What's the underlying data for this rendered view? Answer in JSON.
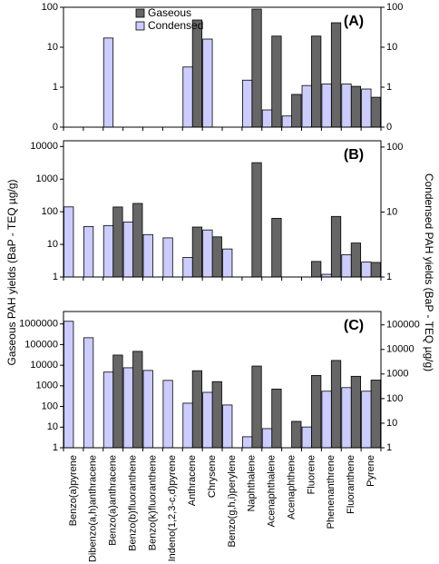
{
  "chart_data": [
    {
      "type": "bar",
      "panel_label": "(A)",
      "log": true,
      "legend": "top-left",
      "ylim": [
        0.1,
        100
      ],
      "yticks": [
        {
          "value": 0.1,
          "label": "0"
        },
        1,
        10,
        100
      ],
      "y2lim": [
        0.1,
        100
      ],
      "y2ticks": [
        {
          "value": 0.1,
          "label": "0"
        },
        1,
        10,
        100
      ],
      "series": [
        {
          "name": "Gaseous",
          "color": "#666666",
          "values": [
            null,
            null,
            null,
            null,
            null,
            null,
            48,
            null,
            null,
            90,
            19,
            0.66,
            19,
            41,
            1.05,
            0.56
          ]
        },
        {
          "name": "Condensed",
          "color": "#ccccff",
          "axis": "y2",
          "values": [
            null,
            null,
            17,
            null,
            null,
            null,
            3.2,
            16,
            null,
            1.5,
            0.27,
            0.19,
            1.1,
            1.2,
            1.2,
            0.9
          ]
        }
      ]
    },
    {
      "type": "bar",
      "panel_label": "(B)",
      "log": true,
      "ylabel": "Gaseous PAH yields (BaP - TEQ µg/g)",
      "y2label": "Condensed PAH yields (BaP - TEQ µg/g)",
      "ylim": [
        1,
        15000
      ],
      "yticks": [
        1,
        10,
        100,
        1000,
        10000
      ],
      "y2lim": [
        1,
        125
      ],
      "y2ticks": [
        1,
        10,
        100
      ],
      "series": [
        {
          "color": "#666666",
          "values": [
            null,
            null,
            140,
            180,
            null,
            null,
            34,
            17,
            null,
            3200,
            63,
            null,
            3,
            72,
            11,
            2.8
          ]
        },
        {
          "color": "#ccccff",
          "axis": "y2",
          "values": [
            12,
            6,
            6.2,
            7,
            4.5,
            4,
            2,
            5.3,
            2.7,
            null,
            null,
            null,
            null,
            1.1,
            2.2,
            1.7
          ]
        }
      ]
    },
    {
      "type": "bar",
      "panel_label": "(C)",
      "log": true,
      "categories": [
        "Benzo(a)pyrene",
        "Dibenzo(a,h)anthracene",
        "Benzo(a)anthracene",
        "Benzo(b)fluoranthene",
        "Benzo(k)fluoranthene",
        "Indeno(1,2,3-c,d)pyrene",
        "Anthracene",
        "Chrysene",
        "Benzo(g,h,i)perylene",
        "Naphthalene",
        "Acenaphthalene",
        "Acenaphthene",
        "Fluorene",
        "Phenenanthrene",
        "Fluoranthene",
        "Pyrene"
      ],
      "ylim": [
        1,
        4000000
      ],
      "yticks": [
        1,
        10,
        100,
        1000,
        10000,
        100000,
        1000000
      ],
      "y2lim": [
        1,
        350000
      ],
      "y2ticks": [
        1,
        10,
        100,
        1000,
        10000,
        100000
      ],
      "series": [
        {
          "color": "#666666",
          "values": [
            null,
            null,
            31000,
            47000,
            null,
            null,
            5400,
            1600,
            null,
            9100,
            700,
            19,
            3200,
            17000,
            2900,
            1900
          ]
        },
        {
          "color": "#ccccff",
          "axis": "y2",
          "values": [
            140000,
            30000,
            1200,
            1800,
            1400,
            550,
            65,
            180,
            55,
            2.8,
            6,
            null,
            7,
            200,
            280,
            200
          ]
        }
      ]
    }
  ]
}
